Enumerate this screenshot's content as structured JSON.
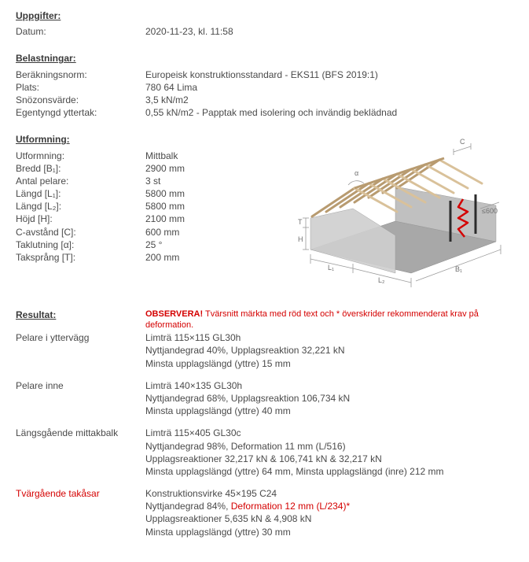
{
  "uppgifter": {
    "title": "Uppgifter:",
    "rows": [
      {
        "label": "Datum:",
        "value": "2020-11-23, kl. 11:58"
      }
    ]
  },
  "belastningar": {
    "title": "Belastningar:",
    "rows": [
      {
        "label": "Beräkningsnorm:",
        "value": "Europeisk konstruktionsstandard - EKS11 (BFS 2019:1)"
      },
      {
        "label": "Plats:",
        "value": "780 64 Lima"
      },
      {
        "label": "Snözonsvärde:",
        "value": "3,5 kN/m2"
      },
      {
        "label": "Egentyngd yttertak:",
        "value": "0,55 kN/m2 - Papptak med isolering och invändig beklädnad"
      }
    ]
  },
  "utformning": {
    "title": "Utformning:",
    "rows": [
      {
        "label": "Utformning:",
        "value": "Mittbalk"
      },
      {
        "label": "Bredd [B₁]:",
        "value": "2900 mm"
      },
      {
        "label": "Antal pelare:",
        "value": "3 st"
      },
      {
        "label": "Längd [L₁]:",
        "value": "5800 mm"
      },
      {
        "label": "Längd [L₂]:",
        "value": "5800 mm"
      },
      {
        "label": "Höjd [H]:",
        "value": "2100 mm"
      },
      {
        "label": "C-avstånd [C]:",
        "value": "600 mm"
      },
      {
        "label": "Taklutning [α]:",
        "value": "25 °"
      },
      {
        "label": "Taksprång [T]:",
        "value": "200 mm"
      }
    ]
  },
  "diagram": {
    "annot_alpha": "α",
    "annot_C": "C",
    "annot_T": "T",
    "annot_H": "H",
    "annot_L1": "L₁",
    "annot_L2": "L₂",
    "annot_B": "B₁",
    "annot_600": "≤600",
    "colors": {
      "wood": "#d9c19a",
      "wood_dark": "#b89b70",
      "wall": "#c9c9c9",
      "floor": "#a8a8a8",
      "dim_line": "#9a9a9a",
      "text": "#707070",
      "red": "#d40000",
      "black": "#2b2b2b"
    }
  },
  "resultat": {
    "title": "Resultat:",
    "warning_bold": "OBSERVERA!",
    "warning_rest": " Tvärsnitt märkta med röd text och * överskrider rekommenderat krav på deformation.",
    "items": [
      {
        "label": "Pelare i yttervägg",
        "label_red": false,
        "lines": [
          {
            "text": "Limträ 115×115 GL30h",
            "red": false
          },
          {
            "text": "Nyttjandegrad 40%, Upplagsreaktion 32,221 kN",
            "red": false
          },
          {
            "text": "Minsta upplagslängd (yttre) 15 mm",
            "red": false
          }
        ]
      },
      {
        "label": "Pelare inne",
        "label_red": false,
        "lines": [
          {
            "text": "Limträ 140×135 GL30h",
            "red": false
          },
          {
            "text": "Nyttjandegrad 68%, Upplagsreaktion 106,734 kN",
            "red": false
          },
          {
            "text": "Minsta upplagslängd (yttre) 40 mm",
            "red": false
          }
        ]
      },
      {
        "label": "Längsgående mittakbalk",
        "label_red": false,
        "lines": [
          {
            "text": "Limträ 115×405 GL30c",
            "red": false
          },
          {
            "text": "Nyttjandegrad 98%, Deformation 11 mm (L/516)",
            "red": false
          },
          {
            "text": "Upplagsreaktioner 32,217 kN & 106,741 kN & 32,217 kN",
            "red": false
          },
          {
            "text": "Minsta upplagslängd (yttre) 64 mm, Minsta upplagslängd (inre) 212 mm",
            "red": false
          }
        ]
      },
      {
        "label": "Tvärgående takåsar",
        "label_red": true,
        "lines": [
          {
            "text": "Konstruktionsvirke 45×195 C24",
            "red": false
          },
          {
            "prefix": "Nyttjandegrad 84%, ",
            "red_part": "Deformation 12 mm (L/234)*",
            "mixed": true
          },
          {
            "text": "Upplagsreaktioner 5,635 kN & 4,908 kN",
            "red": false
          },
          {
            "text": "Minsta upplagslängd (yttre) 30 mm",
            "red": false
          }
        ]
      }
    ]
  }
}
